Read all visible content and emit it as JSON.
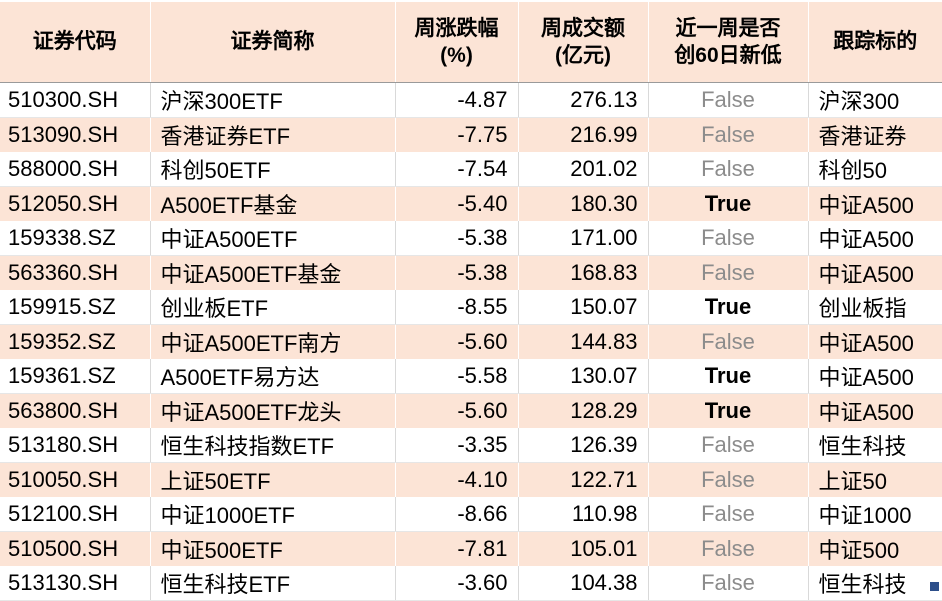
{
  "colors": {
    "header_bg": "#fce4d6",
    "row_bg": "#ffffff",
    "row_alt_bg": "#fce4d6",
    "grid_line": "#d9d9d9",
    "header_divider": "#9a9a9a",
    "false_text": "#8c8c8c",
    "true_text": "#000000",
    "fill_handle": "#2d4f8a"
  },
  "chart_data": {
    "type": "table",
    "columns": [
      {
        "id": "code",
        "lines": [
          "证券代码"
        ],
        "align": "left"
      },
      {
        "id": "name",
        "lines": [
          "证券简称"
        ],
        "align": "left"
      },
      {
        "id": "change",
        "lines": [
          "周涨跌幅",
          "(%)"
        ],
        "align": "right"
      },
      {
        "id": "turnover",
        "lines": [
          "周成交额",
          "(亿元)"
        ],
        "align": "right"
      },
      {
        "id": "new_low",
        "lines": [
          "近一周是否",
          "创60日新低"
        ],
        "align": "center"
      },
      {
        "id": "target",
        "lines": [
          "跟踪标的"
        ],
        "align": "left"
      }
    ],
    "rows": [
      {
        "code": "510300.SH",
        "name": "沪深300ETF",
        "change": "-4.87",
        "turnover": "276.13",
        "new_low": "False",
        "target": "沪深300"
      },
      {
        "code": "513090.SH",
        "name": "香港证券ETF",
        "change": "-7.75",
        "turnover": "216.99",
        "new_low": "False",
        "target": "香港证券"
      },
      {
        "code": "588000.SH",
        "name": "科创50ETF",
        "change": "-7.54",
        "turnover": "201.02",
        "new_low": "False",
        "target": "科创50"
      },
      {
        "code": "512050.SH",
        "name": "A500ETF基金",
        "change": "-5.40",
        "turnover": "180.30",
        "new_low": "True",
        "target": "中证A500"
      },
      {
        "code": "159338.SZ",
        "name": "中证A500ETF",
        "change": "-5.38",
        "turnover": "171.00",
        "new_low": "False",
        "target": "中证A500"
      },
      {
        "code": "563360.SH",
        "name": "中证A500ETF基金",
        "change": "-5.38",
        "turnover": "168.83",
        "new_low": "False",
        "target": "中证A500"
      },
      {
        "code": "159915.SZ",
        "name": "创业板ETF",
        "change": "-8.55",
        "turnover": "150.07",
        "new_low": "True",
        "target": "创业板指"
      },
      {
        "code": "159352.SZ",
        "name": "中证A500ETF南方",
        "change": "-5.60",
        "turnover": "144.83",
        "new_low": "False",
        "target": "中证A500"
      },
      {
        "code": "159361.SZ",
        "name": "A500ETF易方达",
        "change": "-5.58",
        "turnover": "130.07",
        "new_low": "True",
        "target": "中证A500"
      },
      {
        "code": "563800.SH",
        "name": "中证A500ETF龙头",
        "change": "-5.60",
        "turnover": "128.29",
        "new_low": "True",
        "target": "中证A500"
      },
      {
        "code": "513180.SH",
        "name": "恒生科技指数ETF",
        "change": "-3.35",
        "turnover": "126.39",
        "new_low": "False",
        "target": "恒生科技"
      },
      {
        "code": "510050.SH",
        "name": "上证50ETF",
        "change": "-4.10",
        "turnover": "122.71",
        "new_low": "False",
        "target": "上证50"
      },
      {
        "code": "512100.SH",
        "name": "中证1000ETF",
        "change": "-8.66",
        "turnover": "110.98",
        "new_low": "False",
        "target": "中证1000"
      },
      {
        "code": "510500.SH",
        "name": "中证500ETF",
        "change": "-7.81",
        "turnover": "105.01",
        "new_low": "False",
        "target": "中证500"
      },
      {
        "code": "513130.SH",
        "name": "恒生科技ETF",
        "change": "-3.60",
        "turnover": "104.38",
        "new_low": "False",
        "target": "恒生科技"
      }
    ]
  }
}
